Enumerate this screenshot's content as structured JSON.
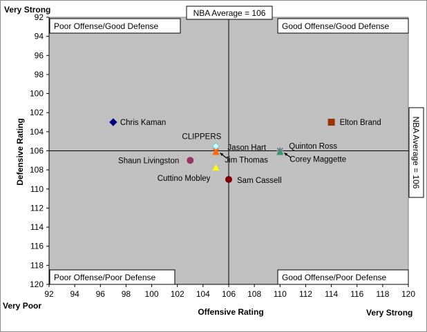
{
  "chart_data": {
    "type": "scatter",
    "xlabel": "Offensive Rating",
    "ylabel": "Defensive Rating",
    "xlim": [
      92,
      120
    ],
    "ylim": [
      92,
      120
    ],
    "y_reversed": true,
    "x_ticks": [
      92,
      94,
      96,
      98,
      100,
      102,
      104,
      106,
      108,
      110,
      112,
      114,
      116,
      118,
      120
    ],
    "y_ticks": [
      92,
      94,
      96,
      98,
      100,
      102,
      104,
      106,
      108,
      110,
      112,
      114,
      116,
      118,
      120
    ],
    "grid": false,
    "plot_background": "#c0c0c0",
    "reference_lines": {
      "x": 106,
      "y": 106,
      "x_label": "NBA Average = 106",
      "y_label": "NBA Average = 106"
    },
    "corner_labels": {
      "top_left": "Very Strong",
      "bottom_left": "Very Poor",
      "bottom_right": "Very Strong"
    },
    "quadrants": {
      "top_left": "Poor Offense/Good Defense",
      "top_right": "Good Offense/Good Defense",
      "bottom_left": "Poor Offense/Poor Defense",
      "bottom_right": "Good Offense/Poor Defense"
    },
    "points": [
      {
        "name": "Chris Kaman",
        "x": 97,
        "y": 103,
        "marker": "diamond",
        "color": "#000080"
      },
      {
        "name": "Elton Brand",
        "x": 114,
        "y": 103,
        "marker": "square",
        "color": "#993300"
      },
      {
        "name": "CLIPPERS",
        "x": 105,
        "y": 105.5,
        "marker": "diamond",
        "color": "#ccffff"
      },
      {
        "name": "Jason Hart",
        "x": 105,
        "y": 106,
        "marker": "x",
        "color": "#ff6600"
      },
      {
        "name": "Jim Thomas",
        "x": 105,
        "y": 106,
        "marker": "triangle",
        "color": "#ff6600"
      },
      {
        "name": "Quinton Ross",
        "x": 110,
        "y": 106,
        "marker": "star",
        "color": "#666699"
      },
      {
        "name": "Corey Maggette",
        "x": 110,
        "y": 106,
        "marker": "triangle",
        "color": "#339966"
      },
      {
        "name": "Shaun Livingston",
        "x": 103,
        "y": 107,
        "marker": "circle",
        "color": "#993366"
      },
      {
        "name": "Cuttino Mobley",
        "x": 105,
        "y": 108,
        "marker": "triangle",
        "color": "#ffff00"
      },
      {
        "name": "Sam Cassell",
        "x": 106,
        "y": 109,
        "marker": "circle",
        "color": "#800000"
      }
    ]
  }
}
